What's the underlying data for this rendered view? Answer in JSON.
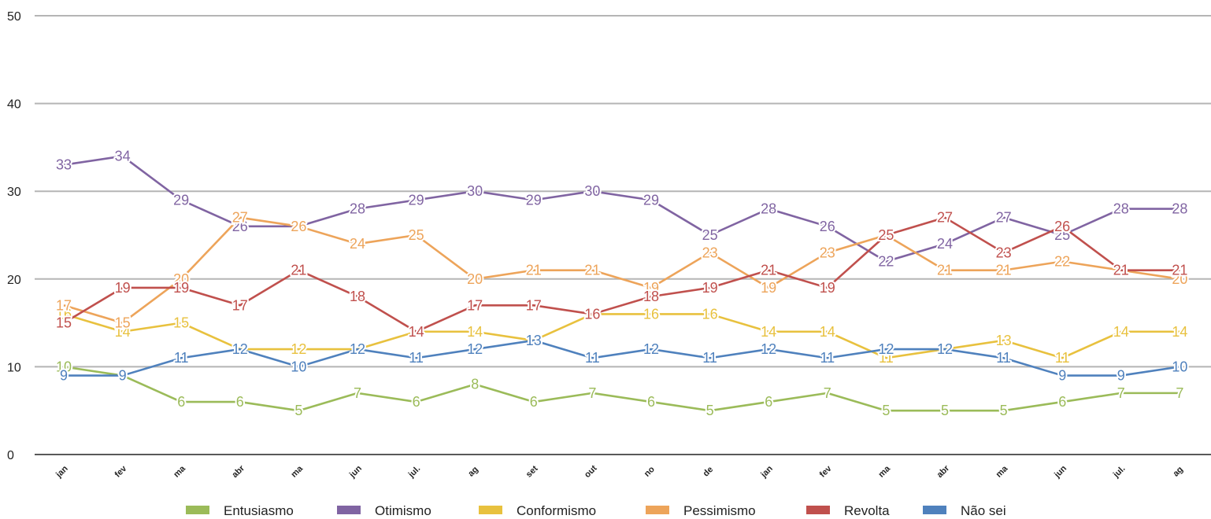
{
  "chart_data": {
    "type": "line",
    "categories": [
      "jan",
      "fev",
      "ma",
      "abr",
      "ma",
      "jun",
      "jul.",
      "ag",
      "set",
      "out",
      "no",
      "de",
      "jan",
      "fev",
      "ma",
      "abr",
      "ma",
      "jun",
      "jul.",
      "ag"
    ],
    "ylim": [
      0,
      50
    ],
    "yticks": [
      0,
      10,
      20,
      30,
      40,
      50
    ],
    "grid": true,
    "legend_position": "bottom",
    "series": [
      {
        "name": "Entusiasmo",
        "color": "#9bbb59",
        "values": [
          10,
          9,
          6,
          6,
          5,
          7,
          6,
          8,
          6,
          7,
          6,
          5,
          6,
          7,
          5,
          5,
          5,
          6,
          7,
          7
        ]
      },
      {
        "name": "Otimismo",
        "color": "#8064a2",
        "values": [
          33,
          34,
          29,
          26,
          26,
          28,
          29,
          30,
          29,
          30,
          29,
          25,
          28,
          26,
          22,
          24,
          27,
          25,
          28,
          28
        ]
      },
      {
        "name": "Conformismo",
        "color": "#e8c13e",
        "values": [
          16,
          14,
          15,
          12,
          12,
          12,
          14,
          14,
          13,
          16,
          16,
          16,
          14,
          14,
          11,
          12,
          13,
          11,
          14,
          14
        ]
      },
      {
        "name": "Pessimismo",
        "color": "#eda45a",
        "values": [
          17,
          15,
          20,
          27,
          26,
          24,
          25,
          20,
          21,
          21,
          19,
          23,
          19,
          23,
          25,
          21,
          21,
          22,
          21,
          20
        ]
      },
      {
        "name": "Revolta",
        "color": "#c0504d",
        "values": [
          15,
          19,
          19,
          17,
          21,
          18,
          14,
          17,
          17,
          16,
          18,
          19,
          21,
          19,
          25,
          27,
          23,
          26,
          21,
          21
        ]
      },
      {
        "name": "Não sei",
        "color": "#4f81bd",
        "values": [
          9,
          9,
          11,
          12,
          10,
          12,
          11,
          12,
          13,
          11,
          12,
          11,
          12,
          11,
          12,
          12,
          11,
          9,
          9,
          10
        ]
      }
    ]
  }
}
